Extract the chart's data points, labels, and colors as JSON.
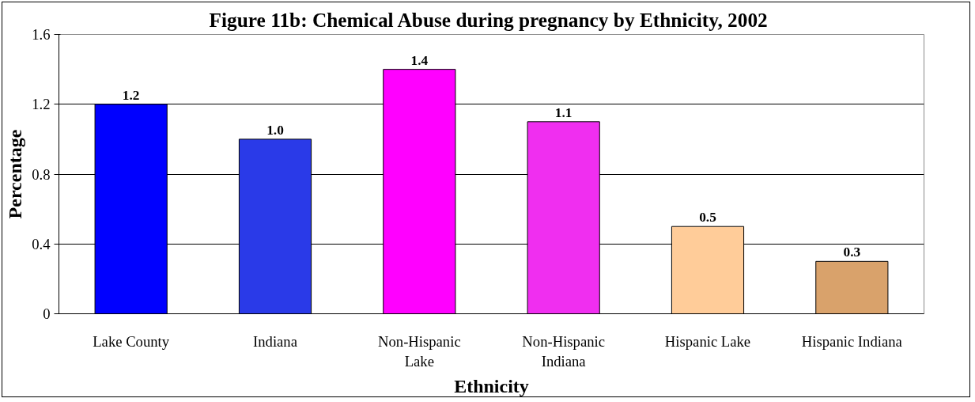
{
  "chart_data": {
    "type": "bar",
    "title": "Figure 11b:  Chemical Abuse during pregnancy by Ethnicity, 2002",
    "xlabel": "Ethnicity",
    "ylabel": "Percentage",
    "categories": [
      "Lake County",
      "Indiana",
      "Non-Hispanic Lake",
      "Non-Hispanic Indiana",
      "Hispanic Lake",
      "Hispanic Indiana"
    ],
    "values": [
      1.2,
      1.0,
      1.4,
      1.1,
      0.5,
      0.3
    ],
    "colors": [
      "#0000ff",
      "#2a3ae8",
      "#ff00ff",
      "#f02ef0",
      "#ffcc99",
      "#d9a26b"
    ],
    "value_labels": [
      "1.2",
      "1.0",
      "1.4",
      "1.1",
      "0.5",
      "0.3"
    ],
    "ylim": [
      0,
      1.6
    ],
    "yticks": [
      0,
      0.4,
      0.8,
      1.2,
      1.6
    ],
    "grid": "y"
  }
}
